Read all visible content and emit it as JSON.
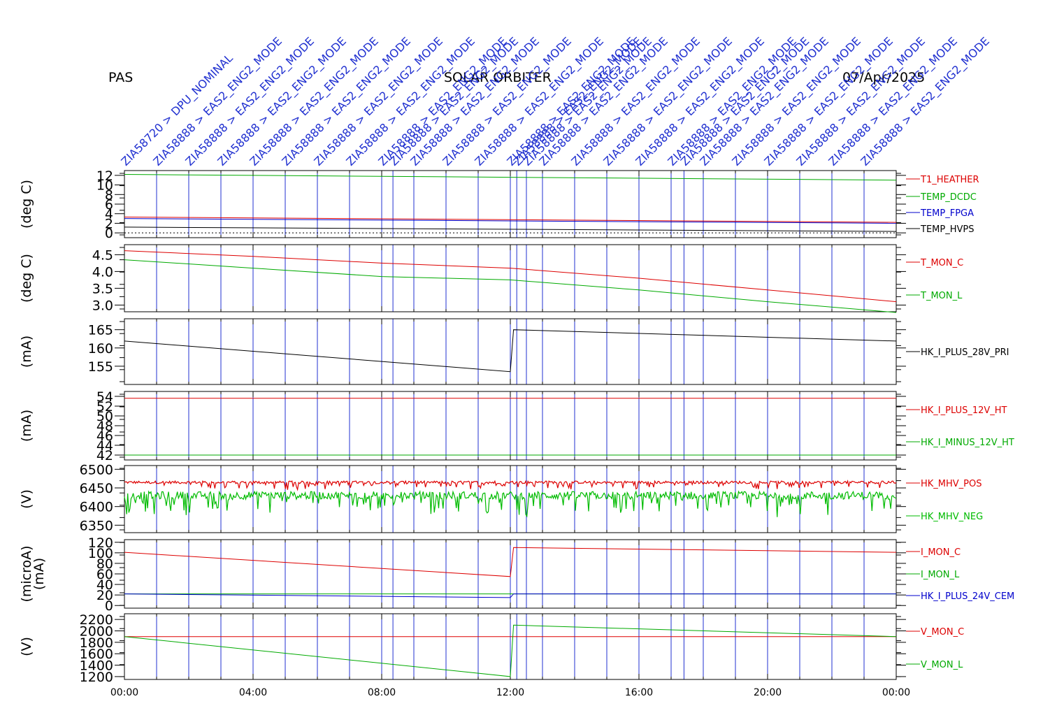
{
  "header": {
    "instrument": "PAS",
    "mission": "SOLAR ORBITER",
    "date": "07/Apr/2025"
  },
  "chart_data": {
    "type": "line",
    "x_ticks": [
      "00:00",
      "04:00",
      "08:00",
      "12:00",
      "16:00",
      "20:00",
      "00:00"
    ],
    "x_range_hours": [
      0,
      24
    ],
    "event_markers": [
      {
        "hour": 0.0,
        "label": "ZIA58720 > DPU_NOMINAL"
      },
      {
        "hour": 1.0,
        "label": "ZIA58888 > EAS2_ENG2_MODE"
      },
      {
        "hour": 2.0,
        "label": "ZIA58888 > EAS2_ENG2_MODE"
      },
      {
        "hour": 3.0,
        "label": "ZIA58888 > EAS2_ENG2_MODE"
      },
      {
        "hour": 4.0,
        "label": "ZIA58888 > EAS2_ENG2_MODE"
      },
      {
        "hour": 5.0,
        "label": "ZIA58888 > EAS2_ENG2_MODE"
      },
      {
        "hour": 6.0,
        "label": "ZIA58888 > EAS2_ENG2_MODE"
      },
      {
        "hour": 7.0,
        "label": "ZIA58888 > EAS2_ENG2_MODE"
      },
      {
        "hour": 8.0,
        "label": "ZIA58888 > EAS2_ENG2_MODE"
      },
      {
        "hour": 8.35,
        "label": "ZIA58888 > EAS2_ENG2_MODE"
      },
      {
        "hour": 9.0,
        "label": "ZIA58888 > EAS2_ENG2_MODE"
      },
      {
        "hour": 10.0,
        "label": "ZIA58888 > EAS2_ENG2_MODE"
      },
      {
        "hour": 11.0,
        "label": "ZIA58888 > EAS2_ENG2_MODE"
      },
      {
        "hour": 12.0,
        "label": "ZIA58888 > EAS2_ENG2_MODE"
      },
      {
        "hour": 12.2,
        "label": "ZIA58888 > EAS2_ENG2_MODE"
      },
      {
        "hour": 12.5,
        "label": "ZIA58888 > EAS2_ENG2_MODE"
      },
      {
        "hour": 13.0,
        "label": "ZIA58888 > EAS2_ENG2_MODE"
      },
      {
        "hour": 14.0,
        "label": "ZIA58888 > EAS2_ENG2_MODE"
      },
      {
        "hour": 15.0,
        "label": "ZIA58888 > EAS2_ENG2_MODE"
      },
      {
        "hour": 16.0,
        "label": "ZIA58888 > EAS2_ENG2_MODE"
      },
      {
        "hour": 17.0,
        "label": "ZIA58888 > EAS2_ENG2_MODE"
      },
      {
        "hour": 17.4,
        "label": "ZIA58888 > EAS2_ENG2_MODE"
      },
      {
        "hour": 18.0,
        "label": "ZIA58888 > EAS2_ENG2_MODE"
      },
      {
        "hour": 19.0,
        "label": "ZIA58888 > EAS2_ENG2_MODE"
      },
      {
        "hour": 20.0,
        "label": "ZIA58888 > EAS2_ENG2_MODE"
      },
      {
        "hour": 21.0,
        "label": "ZIA58888 > EAS2_ENG2_MODE"
      },
      {
        "hour": 22.0,
        "label": "ZIA58888 > EAS2_ENG2_MODE"
      },
      {
        "hour": 23.0,
        "label": "ZIA58888 > EAS2_ENG2_MODE"
      }
    ],
    "panels": [
      {
        "ylabel": "(deg C)",
        "ylim": [
          -1,
          13
        ],
        "yticks": [
          0,
          2,
          4,
          6,
          8,
          10,
          12
        ],
        "ytick_labels": [
          "0",
          "2",
          "4",
          "6",
          "8",
          "10",
          "12"
        ],
        "zero_line": true,
        "series": [
          {
            "name": "T1_HEATHER",
            "color": "#dd0000",
            "x": [
              0,
              24
            ],
            "y": [
              3.3,
              2.2
            ]
          },
          {
            "name": "TEMP_DCDC",
            "color": "#00aa00",
            "x": [
              0,
              24
            ],
            "y": [
              12.2,
              11.0
            ]
          },
          {
            "name": "TEMP_FPGA",
            "color": "#0000cc",
            "x": [
              0,
              24
            ],
            "y": [
              3.0,
              2.0
            ]
          },
          {
            "name": "TEMP_HVPS",
            "color": "#000000",
            "x": [
              0,
              24
            ],
            "y": [
              1.2,
              0.3
            ]
          }
        ]
      },
      {
        "ylabel": "(deg C)",
        "ylim": [
          2.8,
          4.8
        ],
        "yticks": [
          3.0,
          3.5,
          4.0,
          4.5
        ],
        "ytick_labels": [
          "3.0",
          "3.5",
          "4.0",
          "4.5"
        ],
        "series": [
          {
            "name": "T_MON_C",
            "color": "#dd0000",
            "x": [
              0,
              4,
              8,
              12,
              16,
              20,
              24
            ],
            "y": [
              4.62,
              4.45,
              4.25,
              4.1,
              3.8,
              3.45,
              3.1
            ]
          },
          {
            "name": "T_MON_L",
            "color": "#00aa00",
            "x": [
              0,
              4,
              8,
              12,
              16,
              20,
              24
            ],
            "y": [
              4.35,
              4.1,
              3.85,
              3.75,
              3.45,
              3.1,
              2.78
            ]
          }
        ]
      },
      {
        "ylabel": "(mA)",
        "ylim": [
          150,
          168
        ],
        "yticks": [
          155,
          160,
          165
        ],
        "ytick_labels": [
          "155",
          "160",
          "165"
        ],
        "series": [
          {
            "name": "HK_I_PLUS_28V_PRI",
            "color": "#000000",
            "x": [
              0,
              12.0,
              12.1,
              24
            ],
            "y": [
              161.9,
              153.5,
              165.0,
              161.9
            ]
          }
        ]
      },
      {
        "ylabel": "(mA)",
        "ylim": [
          41,
          55
        ],
        "yticks": [
          42,
          44,
          46,
          48,
          50,
          52,
          54
        ],
        "ytick_labels": [
          "42",
          "44",
          "46",
          "48",
          "50",
          "52",
          "54"
        ],
        "series": [
          {
            "name": "HK_I_PLUS_12V_HT",
            "color": "#dd0000",
            "x": [
              0,
              24
            ],
            "y": [
              53.6,
              53.6
            ]
          },
          {
            "name": "HK_I_MINUS_12V_HT",
            "color": "#00aa00",
            "x": [
              0,
              24
            ],
            "y": [
              42.0,
              42.0
            ]
          }
        ]
      },
      {
        "ylabel": "(V)",
        "ylim": [
          6330,
          6510
        ],
        "yticks": [
          6350,
          6400,
          6450,
          6500
        ],
        "ytick_labels": [
          "6350",
          "6400",
          "6450",
          "6500"
        ],
        "series": [
          {
            "name": "HK_MHV_POS",
            "color": "#dd0000",
            "x": [
              0,
              24
            ],
            "y": [
              6465,
              6465
            ],
            "noise": 12
          },
          {
            "name": "HK_MHV_NEG",
            "color": "#00bb00",
            "x": [
              0,
              24
            ],
            "y": [
              6430,
              6430
            ],
            "noise": 35
          }
        ]
      },
      {
        "ylabel": "(microA)",
        "ylabel2": "(mA)",
        "ylim": [
          -5,
          125
        ],
        "yticks": [
          0,
          20,
          40,
          60,
          80,
          100,
          120
        ],
        "ytick_labels": [
          "0",
          "20",
          "40",
          "60",
          "80",
          "100",
          "120"
        ],
        "series": [
          {
            "name": "I_MON_C",
            "color": "#dd0000",
            "x": [
              0,
              12.0,
              12.1,
              24
            ],
            "y": [
              101,
              55,
              110,
              101
            ]
          },
          {
            "name": "I_MON_L",
            "color": "#00aa00",
            "x": [
              0,
              24
            ],
            "y": [
              22,
              22
            ]
          },
          {
            "name": "HK_I_PLUS_24V_CEM",
            "color": "#0000cc",
            "x": [
              0,
              12.0,
              12.1,
              24
            ],
            "y": [
              22,
              15,
              22,
              22
            ]
          }
        ]
      },
      {
        "ylabel": "(V)",
        "ylim": [
          1150,
          2300
        ],
        "yticks": [
          1200,
          1400,
          1600,
          1800,
          2000,
          2200
        ],
        "ytick_labels": [
          "1200",
          "1400",
          "1600",
          "1800",
          "2000",
          "2200"
        ],
        "series": [
          {
            "name": "V_MON_C",
            "color": "#dd0000",
            "x": [
              0,
              24
            ],
            "y": [
              1900,
              1900
            ]
          },
          {
            "name": "V_MON_L",
            "color": "#00aa00",
            "x": [
              0,
              12.0,
              12.1,
              24
            ],
            "y": [
              1900,
              1200,
              2100,
              1900
            ]
          }
        ]
      }
    ]
  }
}
